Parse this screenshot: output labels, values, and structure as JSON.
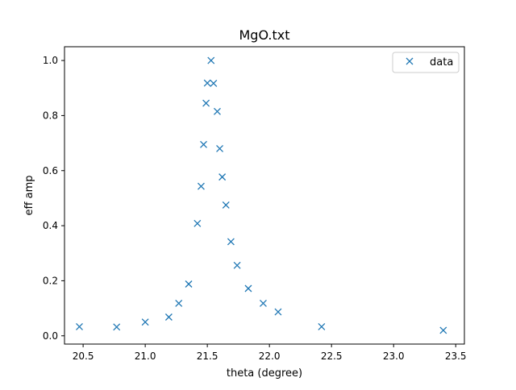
{
  "chart_data": {
    "type": "scatter",
    "title": "MgO.txt",
    "xlabel": "theta (degree)",
    "ylabel": "eff amp",
    "xlim": [
      20.35,
      23.57
    ],
    "ylim": [
      -0.03,
      1.05
    ],
    "x_ticks": [
      20.5,
      21.0,
      21.5,
      22.0,
      22.5,
      23.0,
      23.5
    ],
    "x_tick_labels": [
      "20.5",
      "21.0",
      "21.5",
      "22.0",
      "22.5",
      "23.0",
      "23.5"
    ],
    "y_ticks": [
      0.0,
      0.2,
      0.4,
      0.6,
      0.8,
      1.0
    ],
    "y_tick_labels": [
      "0.0",
      "0.2",
      "0.4",
      "0.6",
      "0.8",
      "1.0"
    ],
    "grid": false,
    "legend_position": "top-right",
    "marker": "x",
    "color": "#1f77b4",
    "series": [
      {
        "name": "data",
        "x": [
          20.47,
          20.77,
          21.0,
          21.19,
          21.27,
          21.35,
          21.42,
          21.45,
          21.47,
          21.49,
          21.5,
          21.53,
          21.55,
          21.58,
          21.6,
          21.62,
          21.65,
          21.69,
          21.74,
          21.83,
          21.95,
          22.07,
          22.42,
          23.4
        ],
        "y": [
          0.033,
          0.032,
          0.05,
          0.068,
          0.118,
          0.188,
          0.408,
          0.543,
          0.695,
          0.845,
          0.918,
          1.0,
          0.917,
          0.815,
          0.68,
          0.577,
          0.475,
          0.342,
          0.256,
          0.172,
          0.118,
          0.087,
          0.033,
          0.02
        ]
      }
    ]
  }
}
